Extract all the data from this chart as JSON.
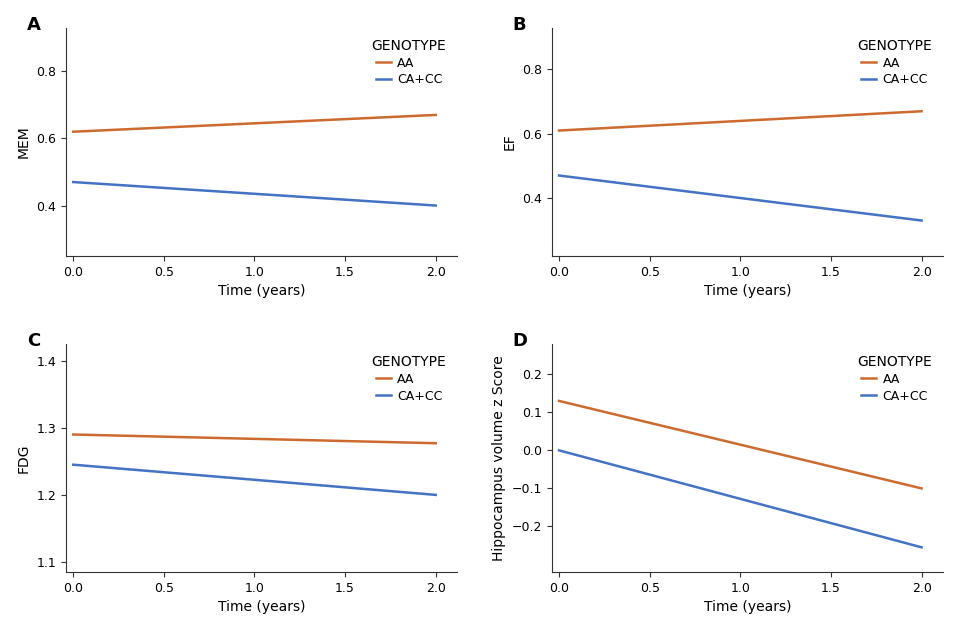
{
  "panels": [
    {
      "label": "A",
      "ylabel": "MEM",
      "ylim": [
        0.25,
        0.93
      ],
      "yticks": [
        0.4,
        0.6,
        0.8
      ],
      "AA": [
        0.62,
        0.67
      ],
      "CACC": [
        0.47,
        0.4
      ]
    },
    {
      "label": "B",
      "ylabel": "EF",
      "ylim": [
        0.22,
        0.93
      ],
      "yticks": [
        0.4,
        0.6,
        0.8
      ],
      "AA": [
        0.61,
        0.67
      ],
      "CACC": [
        0.47,
        0.33
      ]
    },
    {
      "label": "C",
      "ylabel": "FDG",
      "ylim": [
        1.085,
        1.425
      ],
      "yticks": [
        1.1,
        1.2,
        1.3,
        1.4
      ],
      "AA": [
        1.29,
        1.277
      ],
      "CACC": [
        1.245,
        1.2
      ]
    },
    {
      "label": "D",
      "ylabel": "Hippocampus volume z Score",
      "ylim": [
        -0.32,
        0.28
      ],
      "yticks": [
        -0.2,
        -0.1,
        0.0,
        0.1,
        0.2
      ],
      "AA": [
        0.13,
        -0.1
      ],
      "CACC": [
        0.0,
        -0.255
      ]
    }
  ],
  "x": [
    0.0,
    2.0
  ],
  "xlabel": "Time (years)",
  "color_AA": "#CD6A2F",
  "color_CACC": "#4472C4",
  "legend_title": "GENOTYPE",
  "legend_AA": "AA",
  "legend_CACC": "CA+CC",
  "background_color": "#ffffff",
  "linewidth": 1.8,
  "xticks": [
    0.0,
    0.5,
    1.0,
    1.5,
    2.0
  ],
  "label_fontsize": 13,
  "tick_fontsize": 9,
  "axis_label_fontsize": 10,
  "legend_fontsize": 9,
  "legend_title_fontsize": 10
}
